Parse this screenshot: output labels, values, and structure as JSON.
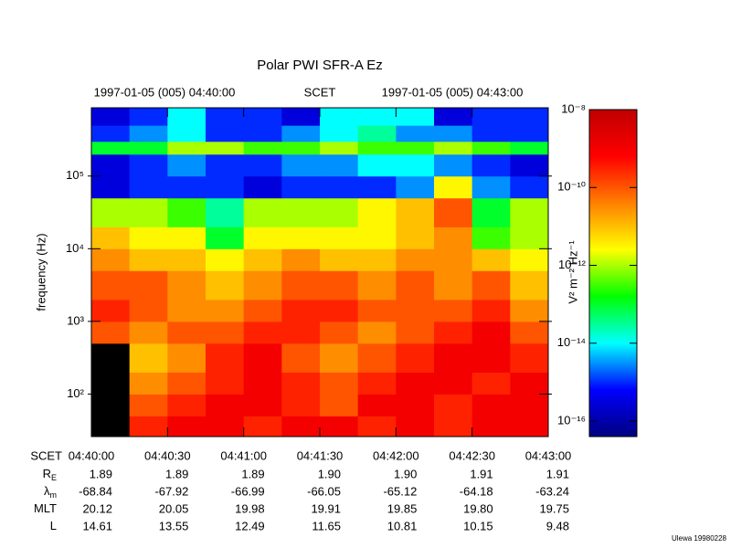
{
  "chart_data": {
    "type": "spectrogram",
    "title": "Polar PWI SFR-A Ez",
    "top_labels": {
      "left": "1997-01-05 (005) 04:40:00",
      "center": "SCET",
      "right": "1997-01-05 (005) 04:43:00"
    },
    "ylabel": "frequency (Hz)",
    "yscale": "log",
    "ylim": [
      26,
      870000
    ],
    "yticks": [
      {
        "value": 100,
        "label": "10²"
      },
      {
        "value": 1000,
        "label": "10³"
      },
      {
        "value": 10000,
        "label": "10⁴"
      },
      {
        "value": 100000,
        "label": "10⁵"
      }
    ],
    "xlim": [
      "04:40:00",
      "04:43:00"
    ],
    "xticks": [
      "04:40:00",
      "04:40:30",
      "04:41:00",
      "04:41:30",
      "04:42:00",
      "04:42:30",
      "04:43:00"
    ],
    "time_bins": [
      "04:40:00",
      "04:40:15",
      "04:40:30",
      "04:40:45",
      "04:41:00",
      "04:41:15",
      "04:41:30",
      "04:41:45",
      "04:42:00",
      "04:42:15",
      "04:42:30",
      "04:42:45",
      "04:43:00"
    ],
    "freq_bins": [
      26,
      50,
      100,
      200,
      500,
      1000,
      2000,
      5000,
      10000,
      20000,
      50000,
      100000,
      200000,
      300000,
      500000,
      870000
    ],
    "z": [
      [
        null,
        3e-10,
        1e-09,
        1e-09,
        3e-10,
        1e-09,
        1e-09,
        3e-10,
        1e-09,
        3e-10,
        1e-09,
        1e-09
      ],
      [
        null,
        1e-10,
        3e-10,
        1e-09,
        1e-09,
        3e-10,
        1e-10,
        1e-09,
        1e-09,
        3e-10,
        1e-09,
        1e-09
      ],
      [
        null,
        3e-11,
        1e-10,
        3e-10,
        1e-09,
        3e-10,
        1e-10,
        3e-10,
        1e-09,
        1e-09,
        3e-10,
        1e-09
      ],
      [
        null,
        1e-11,
        3e-11,
        3e-10,
        1e-09,
        1e-10,
        3e-11,
        1e-10,
        3e-10,
        1e-09,
        1e-09,
        3e-10
      ],
      [
        1e-10,
        3e-11,
        1e-10,
        1e-10,
        3e-10,
        3e-10,
        1e-10,
        3e-11,
        1e-10,
        3e-10,
        1e-09,
        1e-10
      ],
      [
        3e-10,
        1e-10,
        3e-11,
        3e-11,
        1e-10,
        3e-10,
        3e-10,
        1e-10,
        1e-10,
        1e-10,
        3e-10,
        3e-11
      ],
      [
        1e-10,
        1e-10,
        3e-11,
        1e-11,
        3e-11,
        1e-10,
        1e-10,
        3e-11,
        1e-10,
        3e-11,
        1e-10,
        1e-11
      ],
      [
        3e-11,
        1e-11,
        1e-11,
        3e-12,
        1e-11,
        3e-11,
        1e-11,
        1e-11,
        3e-11,
        3e-11,
        1e-11,
        3e-12
      ],
      [
        1e-11,
        3e-12,
        3e-12,
        1e-13,
        3e-12,
        3e-12,
        3e-12,
        3e-12,
        1e-11,
        3e-11,
        3e-13,
        1e-12
      ],
      [
        1e-12,
        1e-12,
        3e-13,
        3e-14,
        1e-12,
        1e-12,
        1e-12,
        3e-12,
        1e-11,
        1e-10,
        1e-13,
        1e-12
      ],
      [
        3e-16,
        1e-15,
        1e-15,
        1e-15,
        3e-16,
        1e-15,
        1e-15,
        1e-15,
        3e-15,
        3e-12,
        3e-15,
        1e-15
      ],
      [
        3e-16,
        1e-15,
        3e-15,
        1e-15,
        1e-15,
        3e-15,
        3e-15,
        1e-14,
        1e-14,
        3e-15,
        1e-15,
        3e-16
      ],
      [
        1e-13,
        1e-13,
        1e-12,
        1e-12,
        3e-13,
        3e-13,
        1e-12,
        3e-13,
        3e-13,
        1e-12,
        3e-13,
        1e-13
      ],
      [
        1e-15,
        3e-15,
        1e-14,
        1e-15,
        1e-15,
        3e-15,
        1e-14,
        3e-14,
        3e-15,
        3e-15,
        1e-15,
        1e-15
      ],
      [
        3e-16,
        1e-15,
        1e-14,
        1e-15,
        1e-15,
        3e-16,
        1e-14,
        1e-14,
        1e-14,
        3e-16,
        1e-15,
        1e-15
      ]
    ],
    "no_data_color": "#000000",
    "colormap": [
      "#000080",
      "#0000ff",
      "#00ffff",
      "#00ff00",
      "#ffff00",
      "#ff8000",
      "#ff0000",
      "#c00000"
    ],
    "zlabel": "V² m⁻² Hz⁻¹",
    "zscale": "log",
    "zlim": [
      4e-17,
      1e-08
    ],
    "zticks": [
      {
        "value": 1e-16,
        "label": "10⁻¹⁶"
      },
      {
        "value": 1e-14,
        "label": "10⁻¹⁴"
      },
      {
        "value": 1e-12,
        "label": "10⁻¹²"
      },
      {
        "value": 1e-10,
        "label": "10⁻¹⁰"
      },
      {
        "value": 1e-08,
        "label": "10⁻⁸"
      }
    ],
    "ephemeris": {
      "time_label": "SCET",
      "rows": [
        {
          "label": "R",
          "sub": "E",
          "values": [
            "1.89",
            "1.89",
            "1.89",
            "1.90",
            "1.90",
            "1.91",
            "1.91"
          ]
        },
        {
          "label": "λ",
          "sub": "m",
          "values": [
            "-68.84",
            "-67.92",
            "-66.99",
            "-66.05",
            "-65.12",
            "-64.18",
            "-63.24"
          ]
        },
        {
          "label": "MLT",
          "values": [
            "20.12",
            "20.05",
            "19.98",
            "19.91",
            "19.85",
            "19.80",
            "19.75"
          ]
        },
        {
          "label": "L",
          "values": [
            "14.61",
            "13.55",
            "12.49",
            "11.65",
            "10.81",
            "10.15",
            "9.48"
          ]
        }
      ]
    },
    "footer": "Ulewa 19980228"
  }
}
